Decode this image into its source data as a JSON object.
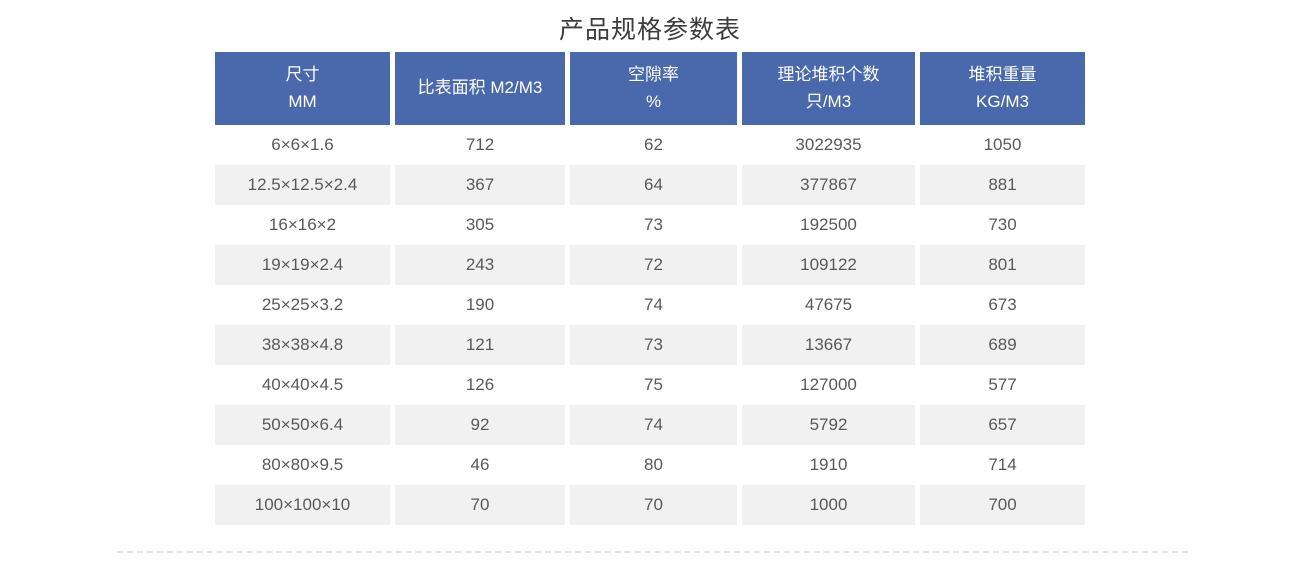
{
  "page": {
    "title": "产品规格参数表"
  },
  "colors": {
    "header_bg": "#4a69ad",
    "header_text": "#ffffff",
    "alt_row_bg": "#f1f1f1",
    "cell_text": "#595959",
    "title_text": "#3d3d3d",
    "divider": "#e3e3e3"
  },
  "table": {
    "columns": [
      {
        "line1": "尺寸",
        "line2": "MM"
      },
      {
        "line1": "比表面积 M2/M3",
        "line2": ""
      },
      {
        "line1": "空隙率",
        "line2": "%"
      },
      {
        "line1": "理论堆积个数",
        "line2": "只/M3"
      },
      {
        "line1": "堆积重量",
        "line2": "KG/M3"
      }
    ],
    "rows": [
      [
        "6×6×1.6",
        "712",
        "62",
        "3022935",
        "1050"
      ],
      [
        "12.5×12.5×2.4",
        "367",
        "64",
        "377867",
        "881"
      ],
      [
        "16×16×2",
        "305",
        "73",
        "192500",
        "730"
      ],
      [
        "19×19×2.4",
        "243",
        "72",
        "109122",
        "801"
      ],
      [
        "25×25×3.2",
        "190",
        "74",
        "47675",
        "673"
      ],
      [
        "38×38×4.8",
        "121",
        "73",
        "13667",
        "689"
      ],
      [
        "40×40×4.5",
        "126",
        "75",
        "127000",
        "577"
      ],
      [
        "50×50×6.4",
        "92",
        "74",
        "5792",
        "657"
      ],
      [
        "80×80×9.5",
        "46",
        "80",
        "1910",
        "714"
      ],
      [
        "100×100×10",
        "70",
        "70",
        "1000",
        "700"
      ]
    ]
  }
}
